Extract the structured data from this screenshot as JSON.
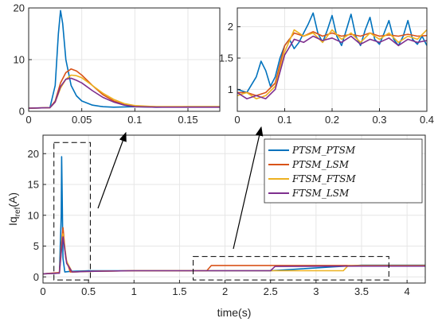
{
  "colors": {
    "PTSM_PTSM": "#0072BD",
    "PTSM_LSM": "#D95319",
    "FTSM_FTSM": "#EDB120",
    "FTSM_LSM": "#7E2F8E",
    "axis": "#262626",
    "grid": "#e6e6e6",
    "zoom_box": "#000000"
  },
  "chart_data": [
    {
      "id": "main",
      "type": "line",
      "xlabel": "time(s)",
      "ylabel_base": "Iq",
      "ylabel_sub": "ref",
      "ylabel_unit": "(A)",
      "xlim": [
        0,
        4.2
      ],
      "ylim": [
        -1,
        23
      ],
      "xticks": [
        0,
        0.5,
        1,
        1.5,
        2,
        2.5,
        3,
        3.5,
        4
      ],
      "xtick_labels": [
        "0",
        "0.5",
        "1",
        "1.5",
        "2",
        "2.5",
        "3",
        "3.5",
        "4"
      ],
      "yticks": [
        0,
        5,
        10,
        15,
        20
      ],
      "ytick_labels": [
        "0",
        "5",
        "10",
        "15",
        "20"
      ],
      "grid": true,
      "legend_position": "top-right",
      "series": [
        {
          "name": "PTSM_PTSM",
          "x": [
            0,
            0.18,
            0.2,
            0.205,
            0.21,
            0.22,
            0.24,
            0.3,
            0.5,
            1.0,
            1.6,
            1.8,
            1.82,
            1.86,
            2.5,
            3.5,
            4.2
          ],
          "y": [
            0.5,
            0.6,
            10,
            19.5,
            14,
            3,
            0.8,
            0.9,
            1.0,
            1.0,
            1.0,
            1.0,
            1.0,
            1.0,
            1.0,
            1.9,
            1.9
          ]
        },
        {
          "name": "PTSM_LSM",
          "x": [
            0,
            0.18,
            0.2,
            0.22,
            0.25,
            0.3,
            0.5,
            1.0,
            1.8,
            1.85,
            1.9,
            2.5,
            3.5,
            4.2
          ],
          "y": [
            0.5,
            0.7,
            5,
            8,
            3,
            0.8,
            0.9,
            1.0,
            1.0,
            1.85,
            1.85,
            1.85,
            1.85,
            1.85
          ]
        },
        {
          "name": "FTSM_FTSM",
          "x": [
            0,
            0.18,
            0.2,
            0.22,
            0.26,
            0.32,
            0.5,
            1.0,
            2.5,
            3.3,
            3.35,
            3.4,
            4.2
          ],
          "y": [
            0.5,
            0.6,
            4,
            7,
            2.5,
            0.8,
            0.9,
            1.0,
            1.0,
            1.0,
            1.8,
            1.8,
            1.8
          ]
        },
        {
          "name": "FTSM_LSM",
          "x": [
            0,
            0.18,
            0.2,
            0.22,
            0.26,
            0.32,
            0.5,
            1.0,
            2.5,
            2.55,
            2.6,
            3.5,
            4.2
          ],
          "y": [
            0.5,
            0.6,
            4,
            6.5,
            2.2,
            0.8,
            0.9,
            1.0,
            1.0,
            1.7,
            1.7,
            1.75,
            1.75
          ]
        }
      ],
      "zoom_boxes": [
        {
          "x": [
            0.12,
            0.52
          ],
          "y": [
            -0.5,
            21.8
          ]
        },
        {
          "x": [
            1.65,
            3.8
          ],
          "y": [
            -0.5,
            3.3
          ]
        }
      ]
    },
    {
      "id": "inset-left",
      "type": "line",
      "xlim": [
        0,
        0.18
      ],
      "ylim": [
        0,
        20
      ],
      "xticks": [
        0,
        0.05,
        0.1,
        0.15
      ],
      "xtick_labels": [
        "0",
        "0.05",
        "0.1",
        "0.15"
      ],
      "yticks": [
        0,
        10,
        20
      ],
      "ytick_labels": [
        "0",
        "10",
        "20"
      ],
      "grid": true,
      "series": [
        {
          "name": "PTSM_PTSM",
          "x": [
            0,
            0.02,
            0.025,
            0.028,
            0.03,
            0.032,
            0.035,
            0.04,
            0.045,
            0.05,
            0.06,
            0.07,
            0.08,
            0.1,
            0.12,
            0.15,
            0.18
          ],
          "y": [
            0.6,
            0.7,
            5,
            15,
            19.5,
            17,
            10,
            5,
            3,
            2,
            1.2,
            0.9,
            0.8,
            0.9,
            0.8,
            0.9,
            0.9
          ]
        },
        {
          "name": "PTSM_LSM",
          "x": [
            0,
            0.02,
            0.025,
            0.03,
            0.035,
            0.04,
            0.045,
            0.05,
            0.06,
            0.07,
            0.08,
            0.09,
            0.1,
            0.12,
            0.15,
            0.18
          ],
          "y": [
            0.6,
            0.7,
            2,
            5.5,
            7.5,
            8.2,
            7.8,
            7,
            5,
            3.2,
            2,
            1.3,
            1,
            0.9,
            0.9,
            0.9
          ]
        },
        {
          "name": "FTSM_FTSM",
          "x": [
            0,
            0.02,
            0.025,
            0.03,
            0.035,
            0.04,
            0.045,
            0.05,
            0.06,
            0.07,
            0.08,
            0.09,
            0.1,
            0.12,
            0.15,
            0.18
          ],
          "y": [
            0.6,
            0.7,
            1.8,
            4.5,
            6.2,
            7,
            6.9,
            6.5,
            5,
            3.5,
            2.3,
            1.5,
            1.1,
            0.9,
            0.9,
            0.9
          ]
        },
        {
          "name": "FTSM_LSM",
          "x": [
            0,
            0.02,
            0.025,
            0.03,
            0.035,
            0.04,
            0.045,
            0.05,
            0.06,
            0.07,
            0.08,
            0.09,
            0.1,
            0.12,
            0.15,
            0.18
          ],
          "y": [
            0.6,
            0.7,
            1.8,
            4.8,
            6.2,
            6.4,
            6,
            5.5,
            4,
            2.7,
            1.8,
            1.2,
            0.9,
            0.8,
            0.8,
            0.8
          ]
        }
      ]
    },
    {
      "id": "inset-right",
      "type": "line",
      "xlim": [
        0,
        0.4
      ],
      "ylim": [
        0.65,
        2.3
      ],
      "xticks": [
        0,
        0.1,
        0.2,
        0.3,
        0.4
      ],
      "xtick_labels": [
        "0",
        "0.1",
        "0.2",
        "0.3",
        "0.4"
      ],
      "yticks": [
        1,
        1.5,
        2
      ],
      "ytick_labels": [
        "1",
        "1.5",
        "2"
      ],
      "grid": true,
      "series": [
        {
          "name": "PTSM_PTSM",
          "x": [
            0,
            0.02,
            0.04,
            0.05,
            0.06,
            0.07,
            0.08,
            0.09,
            0.1,
            0.11,
            0.12,
            0.13,
            0.14,
            0.15,
            0.16,
            0.17,
            0.18,
            0.19,
            0.2,
            0.21,
            0.22,
            0.23,
            0.24,
            0.25,
            0.26,
            0.27,
            0.28,
            0.29,
            0.3,
            0.31,
            0.32,
            0.33,
            0.34,
            0.35,
            0.36,
            0.37,
            0.38,
            0.39,
            0.4
          ],
          "y": [
            1.0,
            0.95,
            1.2,
            1.45,
            1.3,
            1.05,
            1.2,
            1.5,
            1.7,
            1.8,
            1.65,
            1.75,
            1.9,
            2.05,
            2.22,
            1.9,
            1.75,
            1.95,
            2.18,
            1.85,
            1.7,
            1.95,
            2.2,
            1.85,
            1.7,
            1.95,
            2.15,
            1.8,
            1.72,
            1.9,
            2.1,
            1.8,
            1.7,
            1.85,
            2.1,
            1.8,
            1.72,
            1.85,
            1.7
          ]
        },
        {
          "name": "PTSM_LSM",
          "x": [
            0,
            0.02,
            0.04,
            0.06,
            0.08,
            0.1,
            0.12,
            0.14,
            0.16,
            0.18,
            0.2,
            0.22,
            0.24,
            0.26,
            0.28,
            0.3,
            0.32,
            0.34,
            0.36,
            0.38,
            0.4
          ],
          "y": [
            0.95,
            0.95,
            0.9,
            0.95,
            1.1,
            1.7,
            1.9,
            1.85,
            1.92,
            1.85,
            1.9,
            1.85,
            1.88,
            1.85,
            1.9,
            1.85,
            1.87,
            1.85,
            1.88,
            1.85,
            1.86
          ]
        },
        {
          "name": "FTSM_FTSM",
          "x": [
            0,
            0.02,
            0.04,
            0.06,
            0.08,
            0.1,
            0.12,
            0.14,
            0.16,
            0.18,
            0.2,
            0.22,
            0.24,
            0.26,
            0.28,
            0.3,
            0.32,
            0.34,
            0.36,
            0.38,
            0.4
          ],
          "y": [
            0.9,
            0.95,
            0.85,
            0.9,
            1.05,
            1.6,
            1.95,
            1.85,
            1.9,
            1.75,
            1.95,
            1.8,
            1.9,
            1.75,
            1.9,
            1.8,
            1.9,
            1.75,
            1.85,
            1.8,
            1.95
          ]
        },
        {
          "name": "FTSM_LSM",
          "x": [
            0,
            0.02,
            0.04,
            0.06,
            0.08,
            0.1,
            0.12,
            0.14,
            0.16,
            0.18,
            0.2,
            0.22,
            0.24,
            0.26,
            0.28,
            0.3,
            0.32,
            0.34,
            0.36,
            0.38,
            0.4
          ],
          "y": [
            0.95,
            0.85,
            0.9,
            0.85,
            1.0,
            1.55,
            1.8,
            1.75,
            1.85,
            1.78,
            1.82,
            1.75,
            1.85,
            1.72,
            1.8,
            1.75,
            1.82,
            1.7,
            1.8,
            1.75,
            1.78
          ]
        }
      ]
    }
  ]
}
